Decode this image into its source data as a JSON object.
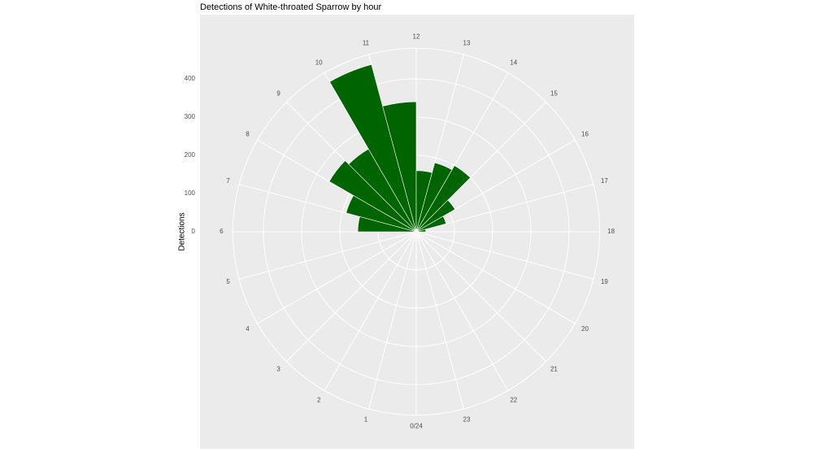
{
  "chart_data": {
    "type": "polar-bar",
    "title": "Detections of White-throated Sparrow by hour",
    "y_label": "Detections",
    "x": [
      6,
      7,
      8,
      9,
      10,
      11,
      12,
      13,
      14,
      15,
      16,
      17
    ],
    "values": [
      153,
      190,
      263,
      250,
      453,
      340,
      160,
      187,
      200,
      117,
      81,
      25
    ],
    "color": "#006400",
    "xlim": [
      0,
      24
    ],
    "xticks": [
      {
        "value": 0,
        "label": "0/24"
      },
      1,
      2,
      3,
      4,
      5,
      6,
      7,
      8,
      9,
      10,
      11,
      12,
      13,
      14,
      15,
      16,
      17,
      18,
      19,
      20,
      21,
      22,
      23
    ],
    "ylim": [
      0,
      480
    ],
    "yticks": [
      0,
      100,
      200,
      300,
      400
    ],
    "grid": true
  }
}
